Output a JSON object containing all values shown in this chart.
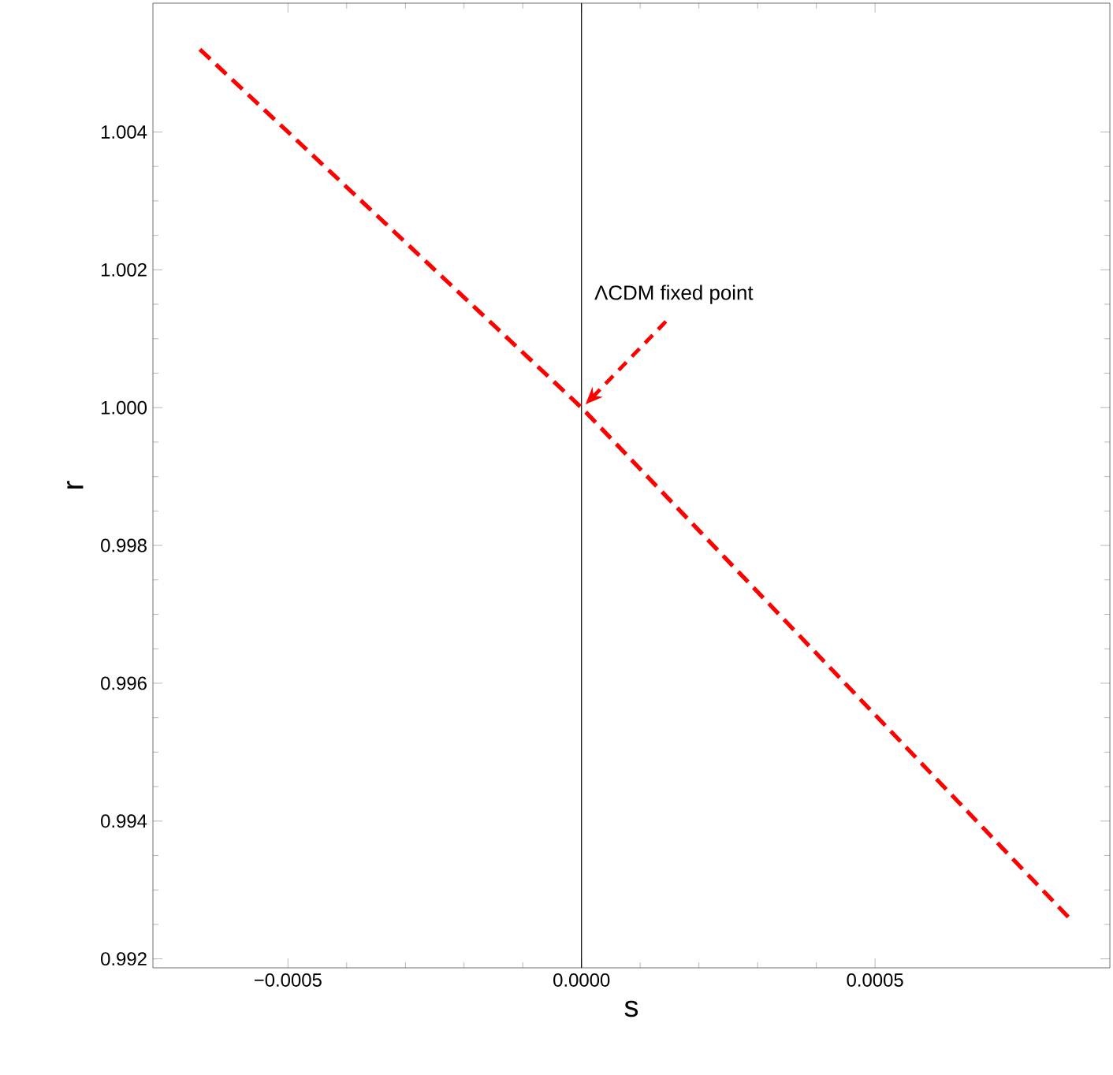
{
  "chart_data": {
    "type": "line",
    "xlabel": "s",
    "ylabel": "r",
    "x": [
      -0.00065,
      0,
      0.00083
    ],
    "series": [
      {
        "color": "#ff0000",
        "values": [
          1.0052,
          1.0,
          0.9926
        ],
        "line_style": "dashed"
      }
    ],
    "xlim": [
      -0.00073,
      0.0009
    ],
    "ylim": [
      0.99187,
      1.00587
    ],
    "xticks": [
      {
        "value": -0.0005,
        "label": "−0.0005"
      },
      {
        "value": 0,
        "label": "0.0000"
      },
      {
        "value": 0.0005,
        "label": "0.0005"
      }
    ],
    "yticks": [
      {
        "value": 0.992,
        "label": "0.992"
      },
      {
        "value": 0.994,
        "label": "0.994"
      },
      {
        "value": 0.996,
        "label": "0.996"
      },
      {
        "value": 0.998,
        "label": "0.998"
      },
      {
        "value": 1.0,
        "label": "1.000"
      },
      {
        "value": 1.002,
        "label": "1.002"
      },
      {
        "value": 1.004,
        "label": "1.004"
      }
    ],
    "ref_lines": [
      {
        "axis": "x",
        "value": 0,
        "color": "#000000"
      }
    ],
    "annotations": [
      "ΛCDM fixed point"
    ],
    "marker": "none"
  }
}
